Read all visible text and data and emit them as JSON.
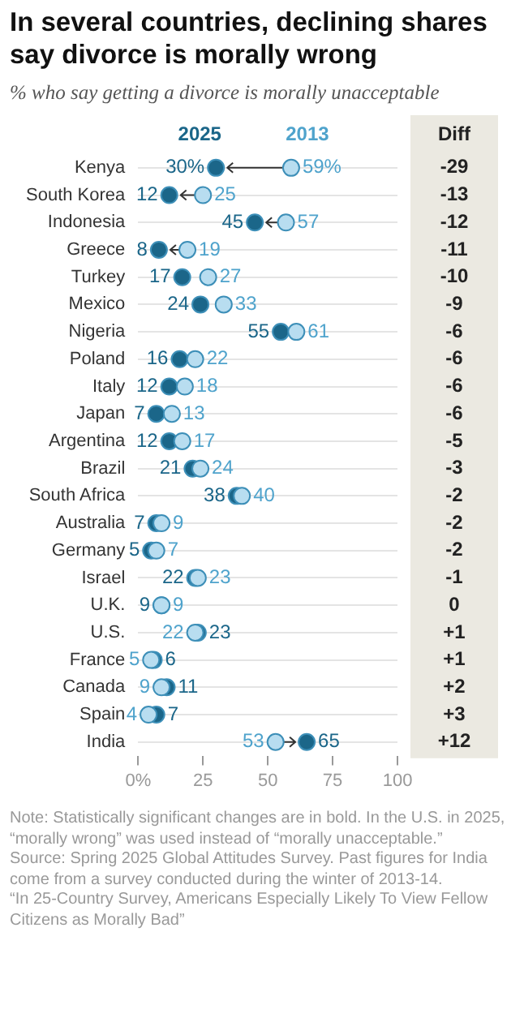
{
  "chart_data": {
    "type": "scatter",
    "orientation": "horizontal",
    "title": "In several countries, declining shares say divorce is morally wrong",
    "subtitle": "% who say getting a divorce is morally unacceptable",
    "categories": [
      "Kenya",
      "South Korea",
      "Indonesia",
      "Greece",
      "Turkey",
      "Mexico",
      "Nigeria",
      "Poland",
      "Italy",
      "Japan",
      "Argentina",
      "Brazil",
      "South Africa",
      "Australia",
      "Germany",
      "Israel",
      "U.K.",
      "U.S.",
      "France",
      "Canada",
      "Spain",
      "India"
    ],
    "series": [
      {
        "name": "2013",
        "color": "#b8ddf0",
        "values": [
          59,
          25,
          57,
          19,
          27,
          33,
          61,
          22,
          18,
          13,
          17,
          24,
          40,
          9,
          7,
          23,
          9,
          22,
          5,
          9,
          4,
          53
        ],
        "value_labels": [
          "59%",
          "25",
          "57",
          "19",
          "27",
          "33",
          "61",
          "22",
          "18",
          "13",
          "17",
          "24",
          "40",
          "9",
          "7",
          "23",
          "9",
          "22",
          "5",
          "9",
          "4",
          "53"
        ]
      },
      {
        "name": "2025",
        "color": "#1b6689",
        "values": [
          30,
          12,
          45,
          8,
          17,
          24,
          55,
          16,
          12,
          7,
          12,
          21,
          38,
          7,
          5,
          22,
          9,
          23,
          6,
          11,
          7,
          65
        ],
        "value_labels": [
          "30%",
          "12",
          "45",
          "8",
          "17",
          "24",
          "55",
          "16",
          "12",
          "7",
          "12",
          "21",
          "38",
          "7",
          "5",
          "22",
          "9",
          "23",
          "6",
          "11",
          "7",
          "65"
        ]
      }
    ],
    "xlim": [
      0,
      100
    ],
    "xticks": [
      {
        "value": 0,
        "label": "0%"
      },
      25,
      50,
      75,
      100
    ],
    "grid": "y",
    "marker": "circle",
    "legend": "top",
    "annotations": [
      "Diff",
      "-29",
      "-13",
      "-12",
      "-11",
      "-10",
      "-9",
      "-6",
      "-6",
      "-6",
      "-6",
      "-5",
      "-3",
      "-2",
      "-2",
      "-2",
      "-1",
      "0",
      "+1",
      "+1",
      "+2",
      "+3",
      "+12",
      "Note: Statistically significant changes are in bold. In the U.S. in 2025, “morally wrong” was used instead of “morally unacceptable.”",
      "Source: Spring 2025 Global Attitudes Survey. Past figures for India come from a survey conducted during the winter of 2013-14.",
      "“In 25-Country Survey, Americans Especially Likely To View Fellow Citizens as Morally Bad”"
    ]
  }
}
